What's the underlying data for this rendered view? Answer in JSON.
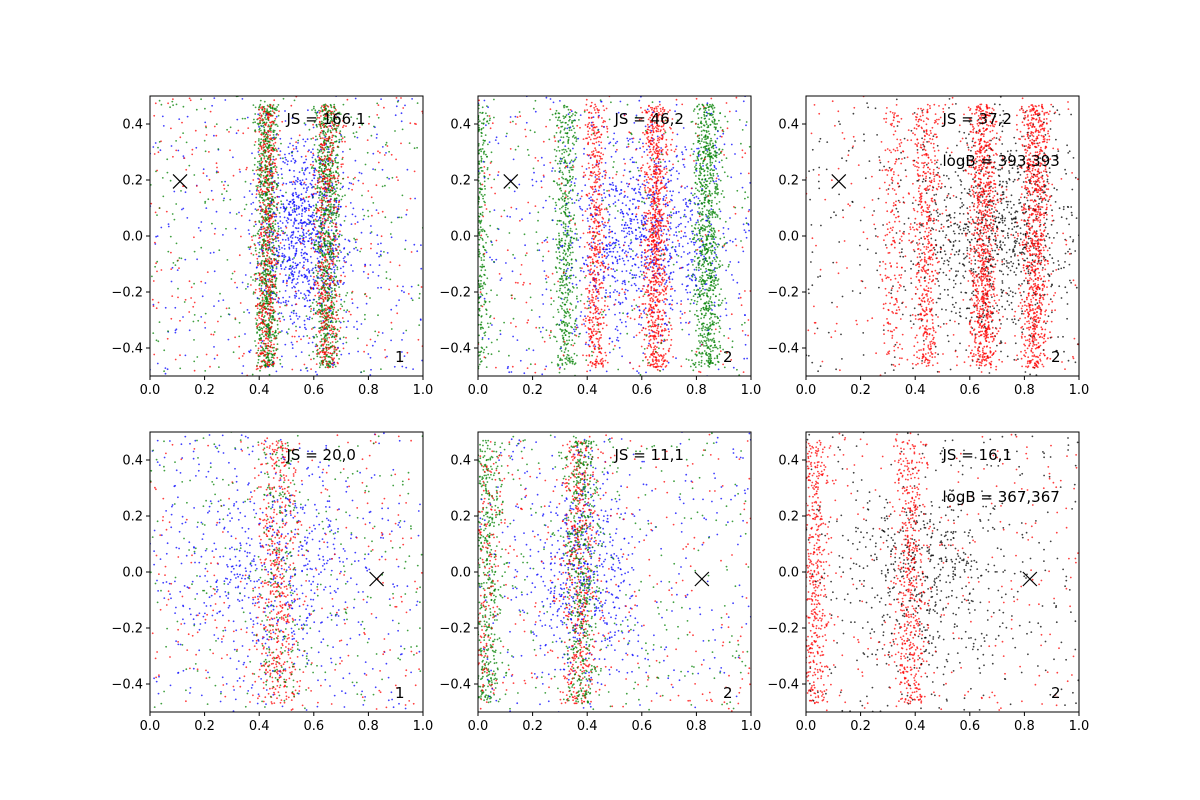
{
  "chart_data": [
    {
      "type": "scatter",
      "xlim": [
        0.0,
        1.0
      ],
      "ylim": [
        -0.5,
        0.5
      ],
      "xticks": [
        "0.0",
        "0.2",
        "0.4",
        "0.6",
        "0.8",
        "1.0"
      ],
      "yticks": [
        "−0.4",
        "−0.2",
        "0.0",
        "0.2",
        "0.4"
      ],
      "annotations": [
        "JS = 166,1"
      ],
      "panel_label": "1",
      "marker": {
        "x": 0.11,
        "y": 0.195,
        "symbol": "x",
        "color": "#000000"
      },
      "point_colors": [
        "#0000ff",
        "#ff0000",
        "#008000"
      ],
      "clusters": [
        {
          "color": "#0000ff",
          "x_center": 0.55,
          "x_spread": 0.09,
          "density": "high"
        },
        {
          "color": "#008000",
          "x_center": 0.43,
          "x_spread": 0.02,
          "density": "high"
        },
        {
          "color": "#008000",
          "x_center": 0.65,
          "x_spread": 0.025,
          "density": "high"
        },
        {
          "color": "#ff0000",
          "x_center": 0.43,
          "x_spread": 0.02,
          "density": "medium"
        },
        {
          "color": "#ff0000",
          "x_center": 0.65,
          "x_spread": 0.025,
          "density": "medium"
        },
        {
          "color": "#0000ff",
          "x_center": 0.5,
          "x_spread": 0.5,
          "density": "background"
        },
        {
          "color": "#ff0000",
          "x_center": 0.5,
          "x_spread": 0.5,
          "density": "background"
        },
        {
          "color": "#008000",
          "x_center": 0.5,
          "x_spread": 0.5,
          "density": "background"
        }
      ]
    },
    {
      "type": "scatter",
      "xlim": [
        0.0,
        1.0
      ],
      "ylim": [
        -0.5,
        0.5
      ],
      "xticks": [
        "0.0",
        "0.2",
        "0.4",
        "0.6",
        "0.8",
        "1.0"
      ],
      "yticks": [
        "−0.4",
        "−0.2",
        "0.0",
        "0.2",
        "0.4"
      ],
      "annotations": [
        "JS = 46,2"
      ],
      "panel_label": "2",
      "marker": {
        "x": 0.12,
        "y": 0.195,
        "symbol": "x",
        "color": "#000000"
      },
      "point_colors": [
        "#0000ff",
        "#ff0000",
        "#008000"
      ],
      "clusters": [
        {
          "color": "#0000ff",
          "x_center": 0.6,
          "x_spread": 0.15,
          "density": "high"
        },
        {
          "color": "#ff0000",
          "x_center": 0.43,
          "x_spread": 0.02,
          "density": "medium"
        },
        {
          "color": "#ff0000",
          "x_center": 0.65,
          "x_spread": 0.025,
          "density": "high"
        },
        {
          "color": "#008000",
          "x_center": 0.84,
          "x_spread": 0.025,
          "density": "high"
        },
        {
          "color": "#008000",
          "x_center": 0.32,
          "x_spread": 0.02,
          "density": "medium"
        },
        {
          "color": "#008000",
          "x_center": 0.0,
          "x_spread": 0.02,
          "density": "medium"
        },
        {
          "color": "#0000ff",
          "x_center": 0.5,
          "x_spread": 0.5,
          "density": "background"
        },
        {
          "color": "#ff0000",
          "x_center": 0.5,
          "x_spread": 0.5,
          "density": "background"
        },
        {
          "color": "#008000",
          "x_center": 0.5,
          "x_spread": 0.5,
          "density": "background"
        }
      ]
    },
    {
      "type": "scatter",
      "xlim": [
        0.0,
        1.0
      ],
      "ylim": [
        -0.5,
        0.5
      ],
      "xticks": [
        "0.0",
        "0.2",
        "0.4",
        "0.6",
        "0.8",
        "1.0"
      ],
      "yticks": [
        "−0.4",
        "−0.2",
        "0.0",
        "0.2",
        "0.4"
      ],
      "annotations": [
        "JS = 37,2",
        "logB = 393,393"
      ],
      "panel_label": "2",
      "marker": {
        "x": 0.12,
        "y": 0.195,
        "symbol": "x",
        "color": "#000000"
      },
      "point_colors": [
        "#000000",
        "#ff0000"
      ],
      "clusters": [
        {
          "color": "#000000",
          "x_center": 0.7,
          "x_spread": 0.15,
          "density": "high"
        },
        {
          "color": "#ff0000",
          "x_center": 0.44,
          "x_spread": 0.025,
          "density": "medium"
        },
        {
          "color": "#ff0000",
          "x_center": 0.65,
          "x_spread": 0.025,
          "density": "high"
        },
        {
          "color": "#ff0000",
          "x_center": 0.84,
          "x_spread": 0.025,
          "density": "high"
        },
        {
          "color": "#ff0000",
          "x_center": 0.32,
          "x_spread": 0.02,
          "density": "low"
        },
        {
          "color": "#000000",
          "x_center": 0.5,
          "x_spread": 0.5,
          "density": "background"
        },
        {
          "color": "#ff0000",
          "x_center": 0.5,
          "x_spread": 0.5,
          "density": "background"
        }
      ]
    },
    {
      "type": "scatter",
      "xlim": [
        0.0,
        1.0
      ],
      "ylim": [
        -0.5,
        0.5
      ],
      "xticks": [
        "0.0",
        "0.2",
        "0.4",
        "0.6",
        "0.8",
        "1.0"
      ],
      "yticks": [
        "−0.4",
        "−0.2",
        "0.0",
        "0.2",
        "0.4"
      ],
      "annotations": [
        "JS = 20,0"
      ],
      "panel_label": "1",
      "marker": {
        "x": 0.83,
        "y": -0.025,
        "symbol": "x",
        "color": "#000000"
      },
      "point_colors": [
        "#0000ff",
        "#ff0000",
        "#008000"
      ],
      "clusters": [
        {
          "color": "#0000ff",
          "x_center": 0.45,
          "x_spread": 0.18,
          "density": "medium"
        },
        {
          "color": "#ff0000",
          "x_center": 0.47,
          "x_spread": 0.04,
          "density": "medium"
        },
        {
          "color": "#008000",
          "x_center": 0.47,
          "x_spread": 0.04,
          "density": "low"
        },
        {
          "color": "#0000ff",
          "x_center": 0.5,
          "x_spread": 0.5,
          "density": "background"
        },
        {
          "color": "#ff0000",
          "x_center": 0.5,
          "x_spread": 0.5,
          "density": "background"
        },
        {
          "color": "#008000",
          "x_center": 0.5,
          "x_spread": 0.5,
          "density": "background"
        }
      ]
    },
    {
      "type": "scatter",
      "xlim": [
        0.0,
        1.0
      ],
      "ylim": [
        -0.5,
        0.5
      ],
      "xticks": [
        "0.0",
        "0.2",
        "0.4",
        "0.6",
        "0.8",
        "1.0"
      ],
      "yticks": [
        "−0.4",
        "−0.2",
        "0.0",
        "0.2",
        "0.4"
      ],
      "annotations": [
        "JS = 11,1"
      ],
      "panel_label": "2",
      "marker": {
        "x": 0.82,
        "y": -0.025,
        "symbol": "x",
        "color": "#000000"
      },
      "point_colors": [
        "#0000ff",
        "#ff0000",
        "#008000"
      ],
      "clusters": [
        {
          "color": "#0000ff",
          "x_center": 0.38,
          "x_spread": 0.1,
          "density": "medium"
        },
        {
          "color": "#ff0000",
          "x_center": 0.37,
          "x_spread": 0.03,
          "density": "medium"
        },
        {
          "color": "#008000",
          "x_center": 0.38,
          "x_spread": 0.03,
          "density": "medium"
        },
        {
          "color": "#008000",
          "x_center": 0.03,
          "x_spread": 0.03,
          "density": "medium"
        },
        {
          "color": "#ff0000",
          "x_center": 0.03,
          "x_spread": 0.03,
          "density": "low"
        },
        {
          "color": "#0000ff",
          "x_center": 0.5,
          "x_spread": 0.5,
          "density": "background"
        },
        {
          "color": "#ff0000",
          "x_center": 0.5,
          "x_spread": 0.5,
          "density": "background"
        },
        {
          "color": "#008000",
          "x_center": 0.5,
          "x_spread": 0.5,
          "density": "background"
        }
      ]
    },
    {
      "type": "scatter",
      "xlim": [
        0.0,
        1.0
      ],
      "ylim": [
        -0.5,
        0.5
      ],
      "xticks": [
        "0.0",
        "0.2",
        "0.4",
        "0.6",
        "0.8",
        "1.0"
      ],
      "yticks": [
        "−0.4",
        "−0.2",
        "0.0",
        "0.2",
        "0.4"
      ],
      "annotations": [
        "JS = 16,1",
        "logB = 367,367"
      ],
      "panel_label": "2",
      "marker": {
        "x": 0.82,
        "y": -0.025,
        "symbol": "x",
        "color": "#000000"
      },
      "point_colors": [
        "#000000",
        "#ff0000"
      ],
      "clusters": [
        {
          "color": "#000000",
          "x_center": 0.45,
          "x_spread": 0.15,
          "density": "medium"
        },
        {
          "color": "#ff0000",
          "x_center": 0.38,
          "x_spread": 0.03,
          "density": "medium"
        },
        {
          "color": "#ff0000",
          "x_center": 0.03,
          "x_spread": 0.03,
          "density": "medium"
        },
        {
          "color": "#000000",
          "x_center": 0.5,
          "x_spread": 0.5,
          "density": "background"
        },
        {
          "color": "#ff0000",
          "x_center": 0.5,
          "x_spread": 0.5,
          "density": "background"
        }
      ]
    }
  ]
}
